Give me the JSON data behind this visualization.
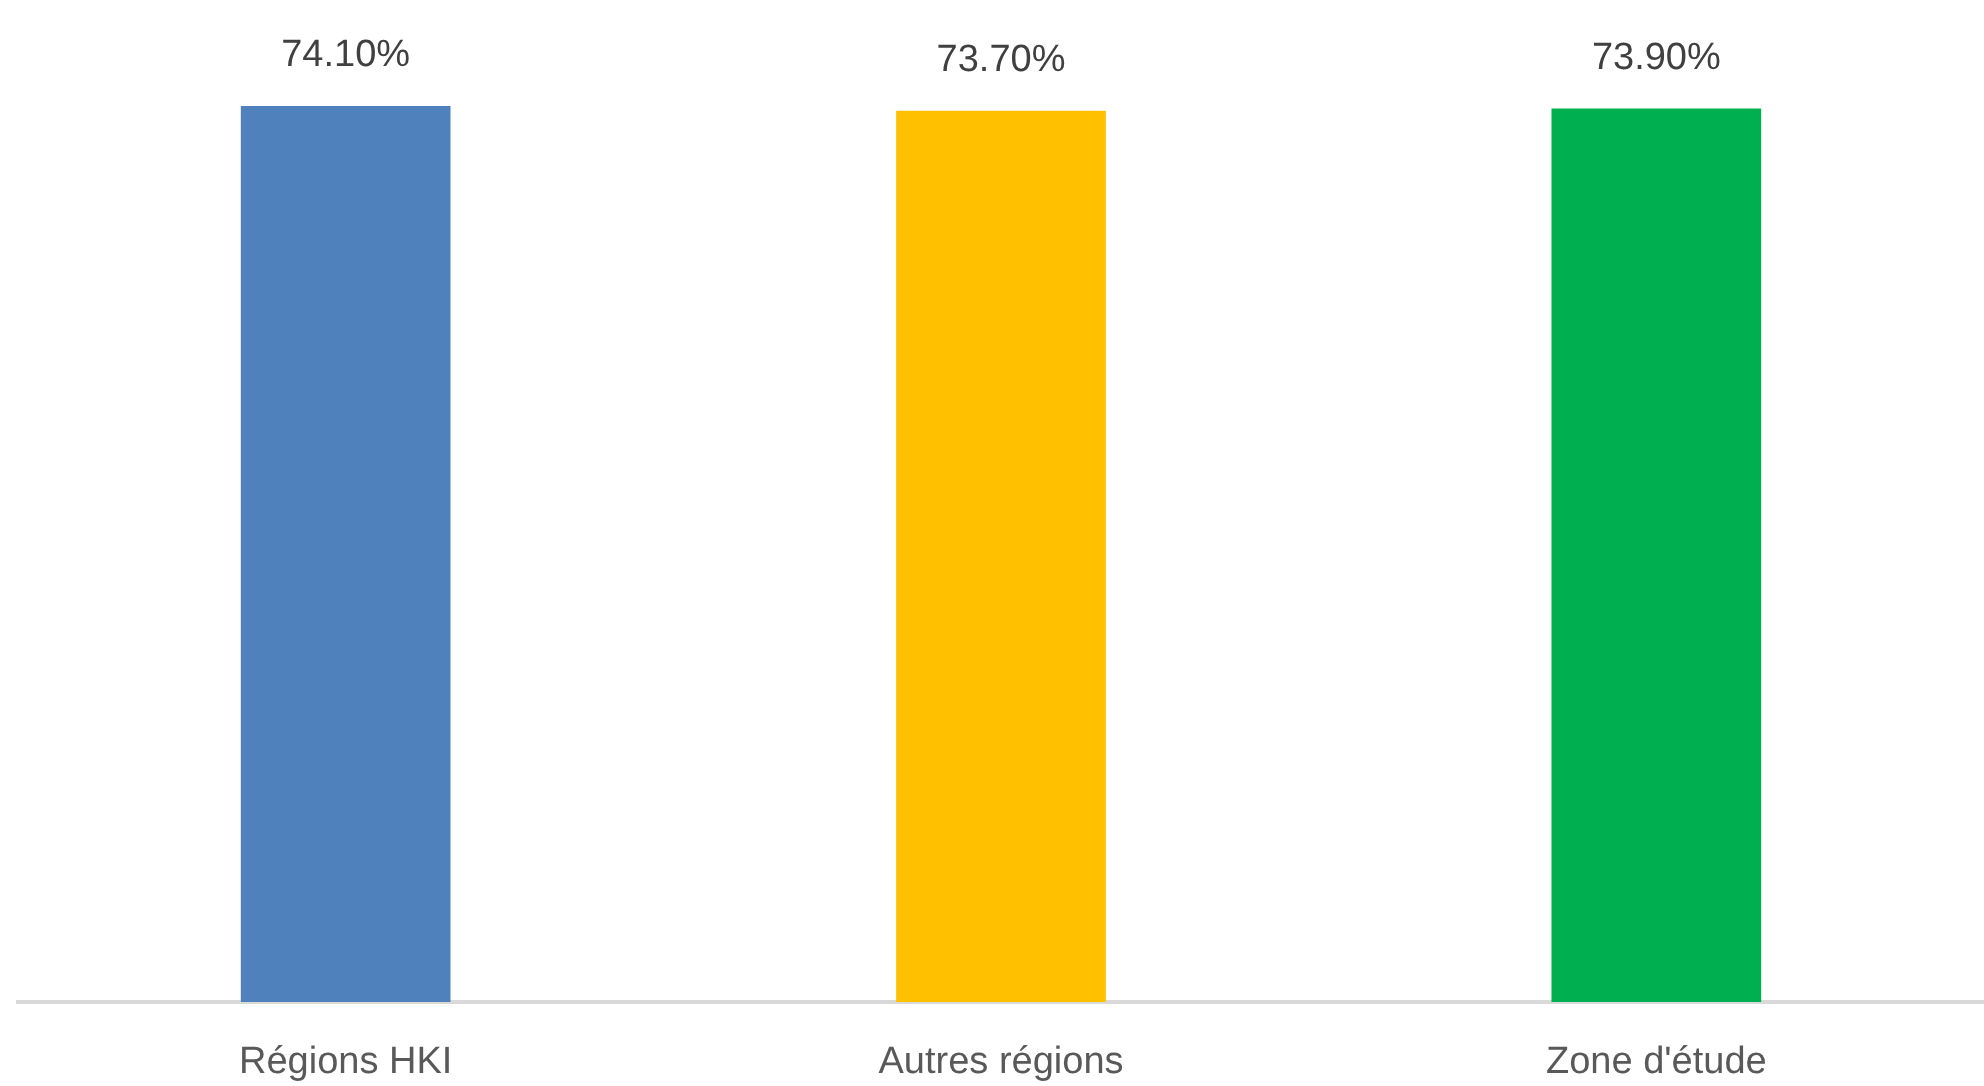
{
  "chart_data": {
    "type": "bar",
    "categories": [
      "Régions HKI",
      "Autres régions",
      "Zone d'étude"
    ],
    "values": [
      74.1,
      73.7,
      73.9
    ],
    "colors": [
      "#4f81bd",
      "#ffc000",
      "#00b050"
    ],
    "value_labels": [
      "74.10%",
      "73.70%",
      "73.90%"
    ],
    "tick_labels": "x"
  }
}
